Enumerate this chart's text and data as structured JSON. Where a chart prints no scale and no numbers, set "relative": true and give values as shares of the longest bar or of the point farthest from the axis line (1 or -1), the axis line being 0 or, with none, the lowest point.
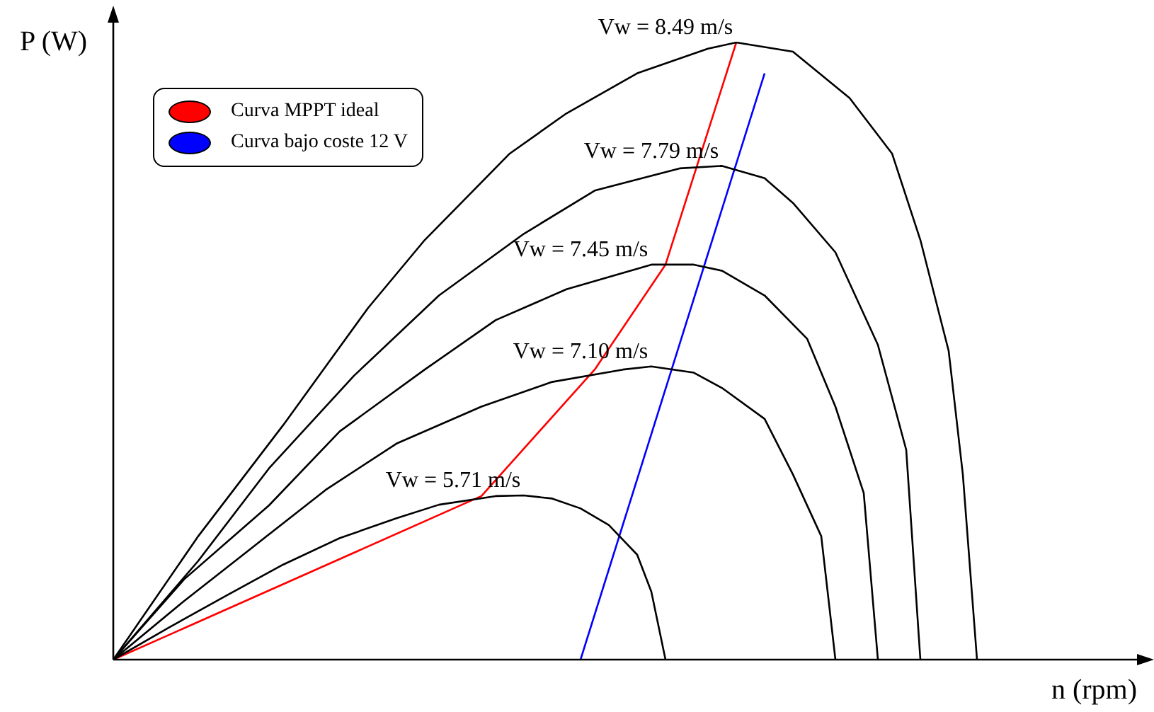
{
  "chart_data": {
    "type": "line",
    "relative": true,
    "xlabel": "n (rpm)",
    "ylabel": "P (W)",
    "legend": "top left",
    "grid": false,
    "marker": "none",
    "line_style": "solid",
    "categories": [
      null,
      null,
      null,
      null,
      null,
      null,
      null,
      null,
      null,
      null,
      null,
      null,
      null,
      null,
      null,
      null,
      null,
      null,
      null,
      null,
      null,
      null,
      null,
      null,
      null,
      null,
      null,
      null,
      null,
      null,
      null,
      null,
      null,
      null,
      null,
      null,
      null,
      null,
      null,
      null,
      null,
      null,
      null,
      null,
      null,
      null,
      null,
      null,
      null,
      null,
      null,
      null,
      null,
      null,
      null,
      null,
      null,
      null,
      null,
      null,
      null,
      null,
      null
    ],
    "series": [
      {
        "name": "Vw = 8.49 m/s",
        "color": "#000000",
        "values": [
          0,
          null,
          null,
          null,
          null,
          null,
          0.2,
          null,
          null,
          null,
          null,
          null,
          0.38,
          null,
          null,
          null,
          null,
          null,
          0.57,
          null,
          null,
          null,
          0.68,
          null,
          null,
          null,
          null,
          null,
          0.82,
          null,
          null,
          null,
          0.885,
          null,
          null,
          null,
          null,
          0.95,
          null,
          null,
          null,
          null,
          0.99,
          null,
          1,
          null,
          null,
          null,
          0.985,
          null,
          null,
          null,
          0.91,
          null,
          null,
          0.82,
          null,
          0.68,
          null,
          0.5,
          0.3,
          0,
          null
        ]
      },
      {
        "name": "Vw = 7.79 m/s",
        "color": "#000000",
        "values": [
          0,
          null,
          null,
          null,
          null,
          null,
          0.16,
          null,
          null,
          null,
          null,
          0.31,
          null,
          null,
          null,
          null,
          null,
          0.46,
          null,
          null,
          null,
          null,
          null,
          0.59,
          null,
          null,
          null,
          null,
          null,
          0.69,
          null,
          null,
          null,
          null,
          0.76,
          null,
          null,
          null,
          null,
          null,
          0.796,
          null,
          null,
          0.8,
          null,
          null,
          0.78,
          null,
          0.74,
          null,
          null,
          0.66,
          null,
          null,
          0.51,
          null,
          0.34,
          0,
          null,
          null,
          null,
          null,
          null
        ]
      },
      {
        "name": "Vw = 7.45 m/s",
        "color": "#000000",
        "values": [
          0,
          null,
          null,
          null,
          null,
          0.13,
          null,
          null,
          null,
          null,
          null,
          0.25,
          null,
          null,
          null,
          null,
          0.37,
          null,
          null,
          null,
          null,
          null,
          0.47,
          null,
          null,
          null,
          null,
          0.55,
          null,
          null,
          null,
          null,
          0.6,
          null,
          null,
          null,
          null,
          null,
          0.64,
          null,
          null,
          0.64,
          null,
          0.63,
          null,
          null,
          0.59,
          null,
          null,
          0.52,
          null,
          0.41,
          null,
          0.27,
          0,
          null,
          null,
          null,
          null,
          null,
          null,
          null,
          null
        ]
      },
      {
        "name": "Vw = 7.10 m/s",
        "color": "#000000",
        "values": [
          0,
          null,
          null,
          null,
          null,
          0.095,
          null,
          null,
          null,
          null,
          0.185,
          null,
          null,
          null,
          null,
          0.275,
          null,
          null,
          null,
          null,
          0.35,
          null,
          null,
          null,
          null,
          null,
          0.41,
          null,
          null,
          null,
          null,
          0.45,
          null,
          null,
          null,
          null,
          0.47,
          null,
          0.475,
          null,
          null,
          0.465,
          null,
          0.44,
          null,
          null,
          0.39,
          null,
          0.3,
          null,
          0.2,
          0,
          null,
          null,
          null,
          null,
          null,
          null,
          null,
          null,
          null,
          null,
          null
        ]
      },
      {
        "name": "Vw = 5.71 m/s",
        "color": "#000000",
        "values": [
          0,
          null,
          null,
          null,
          0.053,
          null,
          null,
          null,
          0.104,
          null,
          null,
          null,
          0.154,
          null,
          null,
          null,
          0.197,
          null,
          null,
          null,
          0.229,
          null,
          null,
          0.251,
          null,
          null,
          null,
          0.265,
          null,
          0.266,
          null,
          0.261,
          null,
          0.245,
          null,
          0.218,
          null,
          0.17,
          0.11,
          0,
          null,
          null,
          null,
          null,
          null,
          null,
          null,
          null,
          null,
          null,
          null,
          null,
          null,
          null,
          null,
          null,
          null,
          null,
          null,
          null,
          null,
          null,
          null
        ]
      },
      {
        "name": "Curva MPPT ideal",
        "color": "#ff0000",
        "values": [
          0,
          null,
          null,
          null,
          null,
          null,
          null,
          null,
          null,
          null,
          null,
          null,
          null,
          null,
          null,
          null,
          null,
          null,
          null,
          null,
          null,
          null,
          null,
          null,
          null,
          null,
          0.265,
          null,
          null,
          null,
          null,
          null,
          null,
          null,
          0.47,
          null,
          null,
          null,
          null,
          0.64,
          null,
          null,
          null,
          null,
          1,
          null,
          null,
          null,
          null,
          null,
          null,
          null,
          null,
          null,
          null,
          null,
          null,
          null,
          null,
          null,
          null,
          null,
          null
        ]
      },
      {
        "name": "Curva bajo coste 12 V",
        "color": "#0000ff",
        "values": [
          null,
          null,
          null,
          null,
          null,
          null,
          null,
          null,
          null,
          null,
          null,
          null,
          null,
          null,
          null,
          null,
          null,
          null,
          null,
          null,
          null,
          null,
          null,
          null,
          null,
          null,
          null,
          null,
          null,
          null,
          null,
          null,
          null,
          0,
          null,
          null,
          null,
          null,
          null,
          null,
          null,
          null,
          null,
          null,
          null,
          null,
          0.95,
          null,
          null,
          null,
          null,
          null,
          null,
          null,
          null,
          null,
          null,
          null,
          null,
          null,
          null,
          null,
          null
        ]
      }
    ]
  }
}
